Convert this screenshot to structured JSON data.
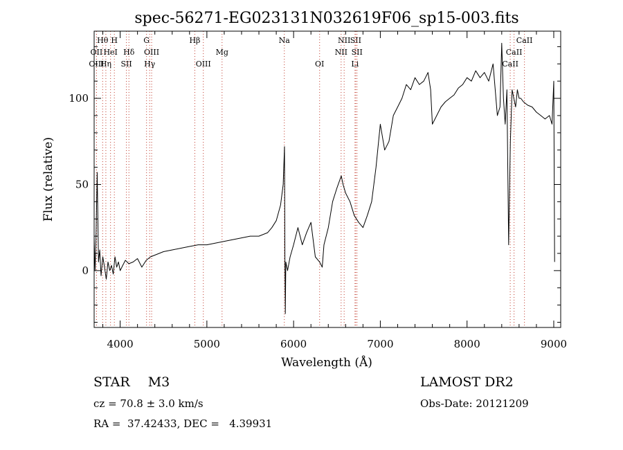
{
  "chart_data": {
    "type": "line",
    "title": "spec-56271-EG023131N032619F06_sp15-003.fits",
    "xlabel": "Wavelength (Å)",
    "ylabel": "Flux (relative)",
    "xlim": [
      3700,
      9080
    ],
    "ylim": [
      -33,
      139
    ],
    "xticks": [
      4000,
      5000,
      6000,
      7000,
      8000,
      9000
    ],
    "yticks": [
      0,
      50,
      100
    ],
    "grid": false,
    "series": [
      {
        "color": "#000000",
        "x": [
          3700,
          3710,
          3720,
          3735,
          3750,
          3765,
          3780,
          3800,
          3820,
          3840,
          3860,
          3880,
          3900,
          3920,
          3940,
          3960,
          3980,
          4000,
          4030,
          4060,
          4100,
          4150,
          4200,
          4250,
          4300,
          4350,
          4400,
          4500,
          4600,
          4700,
          4800,
          4900,
          5000,
          5100,
          5200,
          5300,
          5400,
          5500,
          5600,
          5700,
          5750,
          5800,
          5850,
          5880,
          5895,
          5900,
          5905,
          5910,
          5930,
          5960,
          6000,
          6050,
          6100,
          6150,
          6200,
          6250,
          6300,
          6330,
          6350,
          6400,
          6450,
          6500,
          6550,
          6570,
          6600,
          6650,
          6700,
          6750,
          6800,
          6850,
          6900,
          6950,
          7000,
          7050,
          7100,
          7150,
          7200,
          7250,
          7300,
          7350,
          7400,
          7450,
          7500,
          7550,
          7580,
          7600,
          7650,
          7700,
          7750,
          7800,
          7850,
          7900,
          7950,
          8000,
          8050,
          8100,
          8150,
          8200,
          8250,
          8300,
          8350,
          8380,
          8400,
          8420,
          8440,
          8460,
          8480,
          8500,
          8520,
          8540,
          8560,
          8580,
          8600,
          8620,
          8650,
          8700,
          8750,
          8800,
          8850,
          8900,
          8950,
          8980,
          9000,
          9010
        ],
        "values": [
          20,
          0,
          15,
          57,
          5,
          12,
          -3,
          8,
          2,
          -5,
          5,
          0,
          3,
          -2,
          8,
          2,
          5,
          0,
          3,
          6,
          4,
          5,
          7,
          2,
          6,
          8,
          9,
          11,
          12,
          13,
          14,
          15,
          15,
          16,
          17,
          18,
          19,
          20,
          20,
          22,
          25,
          29,
          38,
          50,
          72,
          5,
          -25,
          5,
          0,
          8,
          15,
          25,
          15,
          22,
          28,
          8,
          5,
          2,
          15,
          25,
          40,
          48,
          55,
          50,
          45,
          40,
          32,
          28,
          25,
          32,
          40,
          60,
          85,
          70,
          75,
          90,
          95,
          100,
          108,
          105,
          112,
          108,
          110,
          115,
          105,
          85,
          90,
          95,
          98,
          100,
          102,
          106,
          108,
          112,
          110,
          116,
          112,
          115,
          110,
          120,
          90,
          95,
          132,
          100,
          85,
          105,
          15,
          75,
          105,
          100,
          95,
          105,
          100,
          100,
          98,
          96,
          95,
          92,
          90,
          88,
          90,
          85,
          110,
          5
        ]
      }
    ],
    "spectral_lines": [
      {
        "label": "Hθ",
        "wavelength": 3798,
        "row": 1
      },
      {
        "label": "OII",
        "wavelength": 3727,
        "row": 2
      },
      {
        "label": "OIII",
        "wavelength": 3727,
        "row": 3
      },
      {
        "label": "H",
        "wavelength": 3933,
        "row": 1
      },
      {
        "label": "HeI",
        "wavelength": 3889,
        "row": 2
      },
      {
        "label": "Hη",
        "wavelength": 3835,
        "row": 3
      },
      {
        "label": "Hδ",
        "wavelength": 4101,
        "row": 2
      },
      {
        "label": "SII",
        "wavelength": 4072,
        "row": 3
      },
      {
        "label": "G",
        "wavelength": 4304,
        "row": 1
      },
      {
        "label": "OIII",
        "wavelength": 4363,
        "row": 2
      },
      {
        "label": "Hγ",
        "wavelength": 4340,
        "row": 3
      },
      {
        "label": "Hβ",
        "wavelength": 4861,
        "row": 1
      },
      {
        "label": "OIII",
        "wavelength": 4959,
        "row": 3
      },
      {
        "label": "Mg",
        "wavelength": 5175,
        "row": 2
      },
      {
        "label": "Na",
        "wavelength": 5893,
        "row": 1
      },
      {
        "label": "OI",
        "wavelength": 6300,
        "row": 3
      },
      {
        "label": "NII",
        "wavelength": 6583,
        "row": 1
      },
      {
        "label": "SII",
        "wavelength": 6716,
        "row": 1
      },
      {
        "label": "NII",
        "wavelength": 6548,
        "row": 2
      },
      {
        "label": "SII",
        "wavelength": 6731,
        "row": 2
      },
      {
        "label": "Li",
        "wavelength": 6708,
        "row": 3
      },
      {
        "label": "CaII",
        "wavelength": 8662,
        "row": 1
      },
      {
        "label": "CaII",
        "wavelength": 8542,
        "row": 2
      },
      {
        "label": "CaII",
        "wavelength": 8498,
        "row": 3
      }
    ]
  },
  "footer": {
    "object_label": "STAR",
    "object_class": "M3",
    "survey": "LAMOST DR2",
    "redshift_line": "cz = 70.8 ± 3.0 km/s",
    "obs_date_line": "Obs-Date: 20121209",
    "coords_line": "RA =  37.42433, DEC =   4.39931"
  }
}
